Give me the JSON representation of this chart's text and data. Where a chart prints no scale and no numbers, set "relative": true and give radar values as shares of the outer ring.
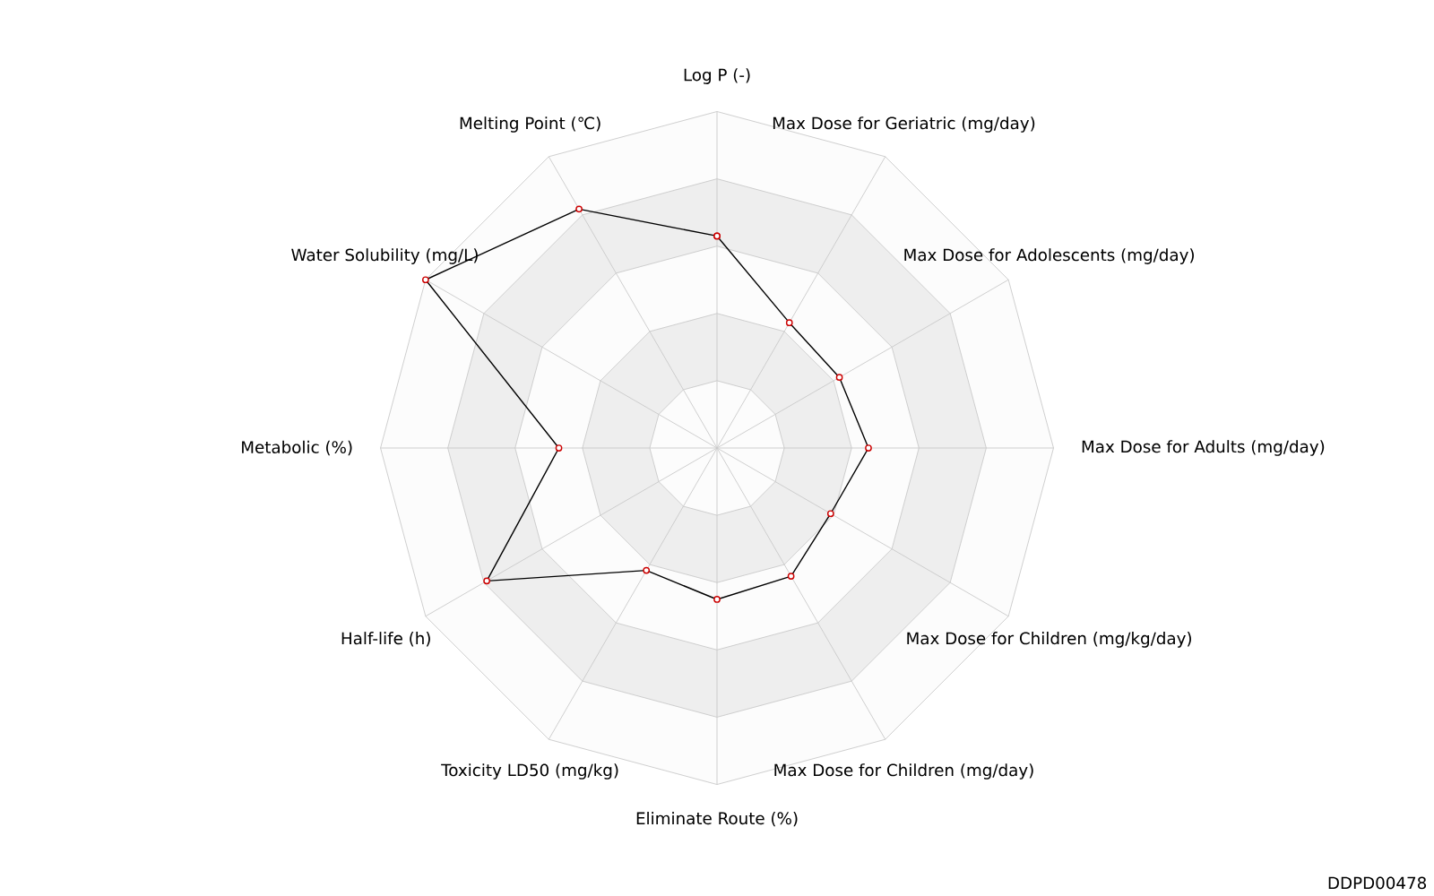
{
  "chart_data": {
    "type": "radar",
    "relative": true,
    "grid": true,
    "marker": "circle",
    "line_style": "solid",
    "categories": [
      "Log P (-)",
      "Max Dose for Geriatric (mg/day)",
      "Max Dose for Adolescents (mg/day)",
      "Max Dose for Adults (mg/day)",
      "Max Dose for Children (mg/kg/day)",
      "Max Dose for Children (mg/day)",
      "Eliminate Route (%)",
      "Toxicity LD50 (mg/kg)",
      "Half-life (h)",
      "Metabolic (%)",
      "Water Solubility (mg/L)",
      "Melting Point (℃)"
    ],
    "series": [
      {
        "color": "#000000",
        "values": [
          0.63,
          0.43,
          0.42,
          0.45,
          0.39,
          0.44,
          0.45,
          0.42,
          0.79,
          0.47,
          1.0,
          0.82
        ]
      }
    ],
    "annotations": [
      "DDPD00478"
    ]
  }
}
